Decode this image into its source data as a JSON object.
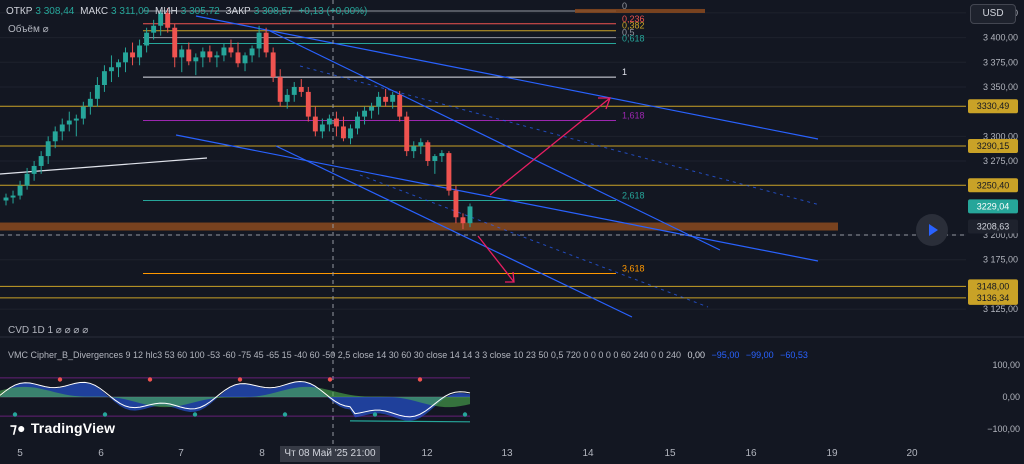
{
  "header": {
    "open_label": "ОТКР",
    "open": "3 308,44",
    "high_label": "МАКС",
    "high": "3 311,09",
    "low_label": "МИН",
    "low": "3 305,72",
    "close_label": "ЗАКР",
    "close": "3 308,57",
    "change": "+0,13 (+0,00%)"
  },
  "volume_label": "Объём",
  "currency_button": "USD",
  "cvd_label": "CVD 1D 1",
  "vmc": {
    "text": "VMC Cipher_B_Divergences 9 12 hlc3 53 60 100 -53 -60 -75 45 -65 15 -40 60 -50 2,5 close 14 30 60 30 close 14 14 3 3 close 10 23 50 0,5 720 0 0 0 0 0 60 240 0 0 240",
    "values": [
      "0,00",
      "−95,00",
      "−99,00",
      "−60,53"
    ]
  },
  "logo": "TradingView",
  "colors": {
    "bg": "#131722",
    "up": "#26a69a",
    "down": "#ef5350",
    "fib_gold": "#c9a227",
    "channel": "#2962ff",
    "arrow": "#e91e63"
  },
  "chart_data": [
    {
      "type": "candlestick",
      "x": [
        "5",
        "6",
        "7",
        "8",
        "Чт 08 Май '25 21:00",
        "12",
        "13",
        "14",
        "15",
        "16",
        "19",
        "20"
      ],
      "x_ticks": [
        "5",
        "6",
        "7",
        "8",
        "12",
        "13",
        "14",
        "15",
        "16",
        "19",
        "20"
      ],
      "crosshair_x": "Чт 08 Май '25 21:00",
      "y_ticks": [
        "3 425,00",
        "3 400,00",
        "3 375,00",
        "3 350,00",
        "3 300,00",
        "3 275,00",
        "3 200,00",
        "3 175,00",
        "3 125,00"
      ],
      "ylim": [
        3118,
        3430
      ],
      "ohlc": [
        [
          3235,
          3242,
          3230,
          3238
        ],
        [
          3238,
          3245,
          3232,
          3240
        ],
        [
          3240,
          3255,
          3236,
          3250
        ],
        [
          3250,
          3268,
          3246,
          3262
        ],
        [
          3262,
          3275,
          3255,
          3270
        ],
        [
          3270,
          3285,
          3262,
          3280
        ],
        [
          3280,
          3300,
          3272,
          3295
        ],
        [
          3295,
          3310,
          3288,
          3305
        ],
        [
          3305,
          3318,
          3296,
          3312
        ],
        [
          3312,
          3325,
          3305,
          3316
        ],
        [
          3316,
          3322,
          3300,
          3318
        ],
        [
          3318,
          3335,
          3312,
          3330
        ],
        [
          3330,
          3345,
          3322,
          3338
        ],
        [
          3338,
          3360,
          3330,
          3352
        ],
        [
          3352,
          3372,
          3345,
          3366
        ],
        [
          3366,
          3382,
          3355,
          3370
        ],
        [
          3370,
          3378,
          3360,
          3375
        ],
        [
          3375,
          3390,
          3365,
          3385
        ],
        [
          3385,
          3395,
          3372,
          3380
        ],
        [
          3380,
          3398,
          3372,
          3392
        ],
        [
          3392,
          3410,
          3385,
          3405
        ],
        [
          3405,
          3418,
          3398,
          3412
        ],
        [
          3412,
          3428,
          3402,
          3425
        ],
        [
          3425,
          3430,
          3405,
          3410
        ],
        [
          3410,
          3414,
          3370,
          3380
        ],
        [
          3380,
          3392,
          3365,
          3388
        ],
        [
          3388,
          3395,
          3372,
          3376
        ],
        [
          3376,
          3384,
          3362,
          3380
        ],
        [
          3380,
          3390,
          3370,
          3386
        ],
        [
          3386,
          3392,
          3375,
          3380
        ],
        [
          3380,
          3386,
          3370,
          3382
        ],
        [
          3382,
          3394,
          3376,
          3390
        ],
        [
          3390,
          3398,
          3380,
          3385
        ],
        [
          3385,
          3395,
          3370,
          3374
        ],
        [
          3374,
          3385,
          3366,
          3382
        ],
        [
          3382,
          3392,
          3375,
          3389
        ],
        [
          3389,
          3412,
          3380,
          3405
        ],
        [
          3405,
          3410,
          3380,
          3385
        ],
        [
          3385,
          3390,
          3355,
          3360
        ],
        [
          3360,
          3368,
          3330,
          3335
        ],
        [
          3335,
          3348,
          3328,
          3342
        ],
        [
          3342,
          3355,
          3335,
          3350
        ],
        [
          3350,
          3358,
          3340,
          3345
        ],
        [
          3345,
          3350,
          3315,
          3320
        ],
        [
          3320,
          3330,
          3300,
          3305
        ],
        [
          3305,
          3318,
          3298,
          3312
        ],
        [
          3312,
          3322,
          3305,
          3318
        ],
        [
          3318,
          3325,
          3300,
          3310
        ],
        [
          3310,
          3320,
          3295,
          3298
        ],
        [
          3298,
          3312,
          3292,
          3308
        ],
        [
          3308,
          3325,
          3302,
          3320
        ],
        [
          3320,
          3330,
          3312,
          3326
        ],
        [
          3326,
          3334,
          3318,
          3330
        ],
        [
          3330,
          3345,
          3322,
          3340
        ],
        [
          3340,
          3348,
          3330,
          3335
        ],
        [
          3335,
          3345,
          3328,
          3342
        ],
        [
          3342,
          3346,
          3315,
          3320
        ],
        [
          3320,
          3325,
          3280,
          3285
        ],
        [
          3285,
          3295,
          3278,
          3290
        ],
        [
          3290,
          3298,
          3282,
          3294
        ],
        [
          3294,
          3296,
          3270,
          3275
        ],
        [
          3275,
          3282,
          3262,
          3280
        ],
        [
          3280,
          3286,
          3274,
          3283
        ],
        [
          3283,
          3285,
          3240,
          3245
        ],
        [
          3245,
          3250,
          3212,
          3218
        ],
        [
          3218,
          3222,
          3206,
          3212
        ],
        [
          3212,
          3232,
          3208,
          3229
        ]
      ],
      "horizontal_levels": [
        {
          "label": "0",
          "value": 3427,
          "price": ""
        },
        {
          "label": "0,236",
          "value": 3414,
          "price": ""
        },
        {
          "label": "0,382",
          "value": 3407,
          "price": ""
        },
        {
          "label": "0,5",
          "value": 3400,
          "price": ""
        },
        {
          "label": "0,618",
          "value": 3394,
          "price": ""
        },
        {
          "label": "1",
          "value": 3360,
          "price": ""
        },
        {
          "label": "",
          "value": 3330.49,
          "price": "3330,49"
        },
        {
          "label": "1,618",
          "value": 3316,
          "price": ""
        },
        {
          "label": "",
          "value": 3290.15,
          "price": "3290,15"
        },
        {
          "label": "",
          "value": 3250.4,
          "price": "3250,40"
        },
        {
          "label": "2,618",
          "value": 3235,
          "price": ""
        },
        {
          "label": "",
          "value": 3229.04,
          "price": "3229,04"
        },
        {
          "label": "",
          "value": 3208.63,
          "price": "3208,63"
        },
        {
          "label": "3,618",
          "value": 3161,
          "price": ""
        },
        {
          "label": "",
          "value": 3148.0,
          "price": "3148,00"
        },
        {
          "label": "",
          "value": 3136.34,
          "price": "3136,34"
        }
      ]
    },
    {
      "type": "line",
      "name": "VMC Cipher_B_Divergences",
      "y_ticks": [
        "100,00",
        "0,00",
        "−100,00"
      ],
      "ylim": [
        -110,
        110
      ]
    }
  ]
}
